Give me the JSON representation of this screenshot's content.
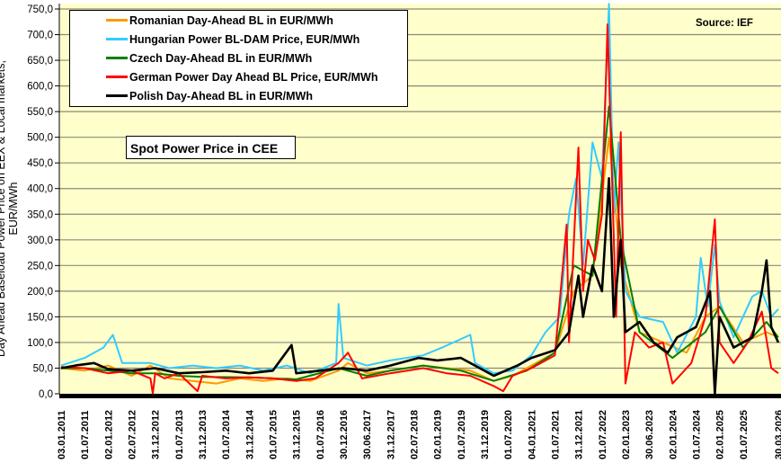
{
  "chart_data": {
    "type": "line",
    "title": "Spot Power Price in CEE",
    "source": "Source: IEF",
    "xlabel": "",
    "ylabel": "Day Ahead Baseload Power Price on EEX & Local markets, EUR/MWh",
    "ylim": [
      0,
      750
    ],
    "xlim_years": [
      2011.0,
      2026.25
    ],
    "grid": true,
    "legend_position": "top-left",
    "y_ticks": [
      "0,0",
      "50,0",
      "100,0",
      "150,0",
      "200,0",
      "250,0",
      "300,0",
      "350,0",
      "400,0",
      "450,0",
      "500,0",
      "550,0",
      "600,0",
      "650,0",
      "700,0",
      "750,0"
    ],
    "x_ticks": [
      "03.01.2011",
      "01.07.2011",
      "02.01.2012",
      "02.07.2012",
      "31.12.2012",
      "01.07.2013",
      "31.12.2013",
      "01.07.2014",
      "31.12.2014",
      "01.07.2015",
      "31.12.2015",
      "01.07.2016",
      "30.12.2016",
      "30.06.2017",
      "31.12.2017",
      "02.07.2018",
      "02.01.2019",
      "01.07.2019",
      "31.12.2019",
      "01.07.2020",
      "04.01.2021",
      "01.07.2021",
      "31.12.2021",
      "01.07.2022",
      "02.01.2023",
      "30.06.2023",
      "02.01.2024",
      "01.07.2024",
      "02.01.2025",
      "01.07.2025",
      "30.03.2026"
    ],
    "series": [
      {
        "name": "Romanian Day-Ahead BL in EUR/MWh",
        "color": "#FF9900",
        "points": [
          [
            2011.0,
            50
          ],
          [
            2011.5,
            45
          ],
          [
            2012.0,
            55
          ],
          [
            2012.5,
            35
          ],
          [
            2012.9,
            55
          ],
          [
            2013.3,
            30
          ],
          [
            2013.8,
            25
          ],
          [
            2014.3,
            20
          ],
          [
            2014.8,
            30
          ],
          [
            2015.3,
            25
          ],
          [
            2015.8,
            30
          ],
          [
            2016.3,
            25
          ],
          [
            2016.9,
            45
          ],
          [
            2017.1,
            60
          ],
          [
            2017.5,
            40
          ],
          [
            2018.0,
            45
          ],
          [
            2018.7,
            55
          ],
          [
            2019.2,
            50
          ],
          [
            2019.7,
            45
          ],
          [
            2020.2,
            25
          ],
          [
            2020.6,
            35
          ],
          [
            2021.0,
            55
          ],
          [
            2021.5,
            80
          ],
          [
            2021.9,
            200
          ],
          [
            2022.3,
            230
          ],
          [
            2022.65,
            500
          ],
          [
            2022.9,
            250
          ],
          [
            2023.3,
            120
          ],
          [
            2023.8,
            100
          ],
          [
            2024.3,
            80
          ],
          [
            2024.7,
            150
          ],
          [
            2025.0,
            170
          ],
          [
            2025.5,
            100
          ],
          [
            2026.0,
            120
          ],
          [
            2026.25,
            110
          ]
        ]
      },
      {
        "name": "Hungarian Power BL-DAM Price, EUR/MWh",
        "color": "#33CCFF",
        "points": [
          [
            2011.0,
            55
          ],
          [
            2011.5,
            70
          ],
          [
            2011.9,
            90
          ],
          [
            2012.1,
            115
          ],
          [
            2012.3,
            60
          ],
          [
            2012.9,
            60
          ],
          [
            2013.3,
            50
          ],
          [
            2013.8,
            55
          ],
          [
            2014.3,
            50
          ],
          [
            2014.8,
            55
          ],
          [
            2015.3,
            45
          ],
          [
            2015.8,
            55
          ],
          [
            2016.3,
            40
          ],
          [
            2016.85,
            60
          ],
          [
            2016.9,
            175
          ],
          [
            2017.0,
            70
          ],
          [
            2017.5,
            55
          ],
          [
            2018.0,
            65
          ],
          [
            2018.7,
            75
          ],
          [
            2019.1,
            90
          ],
          [
            2019.7,
            115
          ],
          [
            2019.8,
            60
          ],
          [
            2020.2,
            40
          ],
          [
            2020.6,
            45
          ],
          [
            2021.0,
            75
          ],
          [
            2021.3,
            120
          ],
          [
            2021.6,
            150
          ],
          [
            2021.8,
            350
          ],
          [
            2021.95,
            420
          ],
          [
            2022.1,
            250
          ],
          [
            2022.3,
            490
          ],
          [
            2022.5,
            420
          ],
          [
            2022.65,
            760
          ],
          [
            2022.75,
            350
          ],
          [
            2022.85,
            490
          ],
          [
            2023.0,
            200
          ],
          [
            2023.3,
            150
          ],
          [
            2023.8,
            140
          ],
          [
            2024.1,
            80
          ],
          [
            2024.5,
            150
          ],
          [
            2024.6,
            265
          ],
          [
            2024.75,
            170
          ],
          [
            2024.9,
            290
          ],
          [
            2025.0,
            180
          ],
          [
            2025.3,
            110
          ],
          [
            2025.7,
            190
          ],
          [
            2025.9,
            200
          ],
          [
            2026.1,
            150
          ],
          [
            2026.25,
            165
          ]
        ]
      },
      {
        "name": "Czech Day-Ahead BL in EUR/MWh",
        "color": "#008000",
        "points": [
          [
            2011.0,
            50
          ],
          [
            2011.5,
            50
          ],
          [
            2012.0,
            45
          ],
          [
            2012.5,
            40
          ],
          [
            2013.0,
            40
          ],
          [
            2013.5,
            35
          ],
          [
            2014.0,
            33
          ],
          [
            2015.0,
            32
          ],
          [
            2016.0,
            28
          ],
          [
            2016.9,
            50
          ],
          [
            2017.5,
            35
          ],
          [
            2018.0,
            45
          ],
          [
            2018.7,
            55
          ],
          [
            2019.5,
            45
          ],
          [
            2020.2,
            25
          ],
          [
            2020.9,
            45
          ],
          [
            2021.5,
            80
          ],
          [
            2021.9,
            250
          ],
          [
            2022.3,
            230
          ],
          [
            2022.65,
            560
          ],
          [
            2022.9,
            300
          ],
          [
            2023.3,
            120
          ],
          [
            2024.0,
            70
          ],
          [
            2024.7,
            120
          ],
          [
            2025.0,
            170
          ],
          [
            2025.5,
            90
          ],
          [
            2026.0,
            140
          ],
          [
            2026.25,
            110
          ]
        ]
      },
      {
        "name": "German Power Day Ahead BL Price, EUR/MWh",
        "color": "#FF0000",
        "points": [
          [
            2011.0,
            52
          ],
          [
            2011.5,
            50
          ],
          [
            2012.0,
            40
          ],
          [
            2012.5,
            45
          ],
          [
            2012.9,
            30
          ],
          [
            2012.95,
            0
          ],
          [
            2013.0,
            40
          ],
          [
            2013.2,
            30
          ],
          [
            2013.5,
            40
          ],
          [
            2013.9,
            5
          ],
          [
            2014.0,
            35
          ],
          [
            2014.5,
            30
          ],
          [
            2015.0,
            32
          ],
          [
            2015.5,
            30
          ],
          [
            2016.0,
            25
          ],
          [
            2016.4,
            30
          ],
          [
            2016.9,
            60
          ],
          [
            2017.1,
            80
          ],
          [
            2017.4,
            30
          ],
          [
            2018.0,
            40
          ],
          [
            2018.7,
            50
          ],
          [
            2019.2,
            40
          ],
          [
            2019.7,
            35
          ],
          [
            2020.2,
            15
          ],
          [
            2020.4,
            5
          ],
          [
            2020.6,
            35
          ],
          [
            2021.0,
            50
          ],
          [
            2021.5,
            75
          ],
          [
            2021.75,
            330
          ],
          [
            2021.8,
            100
          ],
          [
            2022.0,
            480
          ],
          [
            2022.1,
            200
          ],
          [
            2022.2,
            300
          ],
          [
            2022.35,
            260
          ],
          [
            2022.5,
            350
          ],
          [
            2022.62,
            720
          ],
          [
            2022.7,
            470
          ],
          [
            2022.8,
            150
          ],
          [
            2022.9,
            510
          ],
          [
            2023.0,
            20
          ],
          [
            2023.2,
            120
          ],
          [
            2023.5,
            90
          ],
          [
            2023.8,
            100
          ],
          [
            2024.0,
            20
          ],
          [
            2024.4,
            60
          ],
          [
            2024.7,
            150
          ],
          [
            2024.9,
            340
          ],
          [
            2025.0,
            100
          ],
          [
            2025.3,
            60
          ],
          [
            2025.6,
            100
          ],
          [
            2025.9,
            160
          ],
          [
            2026.1,
            50
          ],
          [
            2026.25,
            40
          ]
        ]
      },
      {
        "name": "Polish Day-Ahead BL in EUR/MWh",
        "color": "#000000",
        "points": [
          [
            2011.0,
            50
          ],
          [
            2011.3,
            55
          ],
          [
            2011.7,
            60
          ],
          [
            2012.0,
            48
          ],
          [
            2012.5,
            45
          ],
          [
            2013.0,
            50
          ],
          [
            2013.5,
            40
          ],
          [
            2014.0,
            42
          ],
          [
            2014.5,
            45
          ],
          [
            2015.0,
            40
          ],
          [
            2015.5,
            45
          ],
          [
            2015.9,
            95
          ],
          [
            2016.0,
            40
          ],
          [
            2016.5,
            45
          ],
          [
            2017.0,
            50
          ],
          [
            2017.5,
            45
          ],
          [
            2018.0,
            55
          ],
          [
            2018.6,
            70
          ],
          [
            2019.0,
            65
          ],
          [
            2019.5,
            70
          ],
          [
            2020.0,
            45
          ],
          [
            2020.2,
            35
          ],
          [
            2020.7,
            55
          ],
          [
            2021.0,
            70
          ],
          [
            2021.5,
            85
          ],
          [
            2021.8,
            120
          ],
          [
            2022.0,
            230
          ],
          [
            2022.1,
            150
          ],
          [
            2022.3,
            250
          ],
          [
            2022.5,
            200
          ],
          [
            2022.65,
            420
          ],
          [
            2022.75,
            150
          ],
          [
            2022.9,
            300
          ],
          [
            2023.0,
            120
          ],
          [
            2023.3,
            140
          ],
          [
            2023.6,
            100
          ],
          [
            2023.9,
            80
          ],
          [
            2024.1,
            110
          ],
          [
            2024.5,
            130
          ],
          [
            2024.8,
            200
          ],
          [
            2024.9,
            0
          ],
          [
            2025.0,
            150
          ],
          [
            2025.3,
            90
          ],
          [
            2025.7,
            110
          ],
          [
            2025.9,
            200
          ],
          [
            2026.0,
            260
          ],
          [
            2026.1,
            130
          ],
          [
            2026.25,
            100
          ]
        ]
      }
    ]
  }
}
